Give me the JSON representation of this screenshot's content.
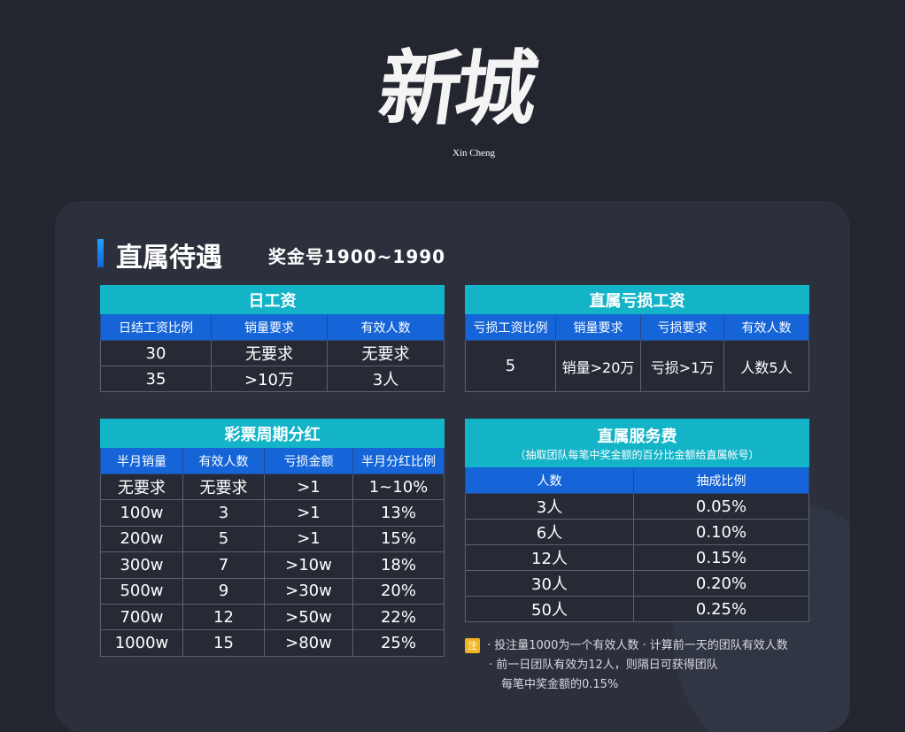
{
  "logo": {
    "main": "新城",
    "sub": "Xin Cheng"
  },
  "header": {
    "title": "直属待遇",
    "subtitle": "奖金号1900~1990"
  },
  "daily_wage": {
    "title": "日工资",
    "columns": [
      "日结工资比例",
      "销量要求",
      "有效人数"
    ],
    "rows": [
      [
        "30",
        "无要求",
        "无要求"
      ],
      [
        "35",
        ">10万",
        "3人"
      ]
    ]
  },
  "loss_wage": {
    "title": "直属亏损工资",
    "columns": [
      "亏损工资比例",
      "销量要求",
      "亏损要求",
      "有效人数"
    ],
    "rows": [
      [
        "5",
        "销量>20万",
        "亏损>1万",
        "人数5人"
      ]
    ]
  },
  "dividend": {
    "title": "彩票周期分红",
    "columns": [
      "半月销量",
      "有效人数",
      "亏损金额",
      "半月分红比例"
    ],
    "rows": [
      [
        "无要求",
        "无要求",
        ">1",
        "1~10%"
      ],
      [
        "100w",
        "3",
        ">1",
        "13%"
      ],
      [
        "200w",
        "5",
        ">1",
        "15%"
      ],
      [
        "300w",
        "7",
        ">10w",
        "18%"
      ],
      [
        "500w",
        "9",
        ">30w",
        "20%"
      ],
      [
        "700w",
        "12",
        ">50w",
        "22%"
      ],
      [
        "1000w",
        "15",
        ">80w",
        "25%"
      ]
    ]
  },
  "service_fee": {
    "title": "直属服务费",
    "subtitle": "（抽取团队每笔中奖金额的百分比金额给直属帐号）",
    "columns": [
      "人数",
      "抽成比例"
    ],
    "rows": [
      [
        "3人",
        "0.05%"
      ],
      [
        "6人",
        "0.10%"
      ],
      [
        "12人",
        "0.15%"
      ],
      [
        "30人",
        "0.20%"
      ],
      [
        "50人",
        "0.25%"
      ]
    ]
  },
  "notes": {
    "badge": "注",
    "line1": "·  投注量1000为一个有效人数  ·  计算前一天的团队有效人数",
    "line2": "·  前一日团队有效为12人，则隔日可获得团队",
    "line3": "每笔中奖金额的0.15%"
  },
  "colors": {
    "header_cyan": "#14b4c8",
    "header_blue": "#1565d8",
    "badge": "#f0b323"
  }
}
